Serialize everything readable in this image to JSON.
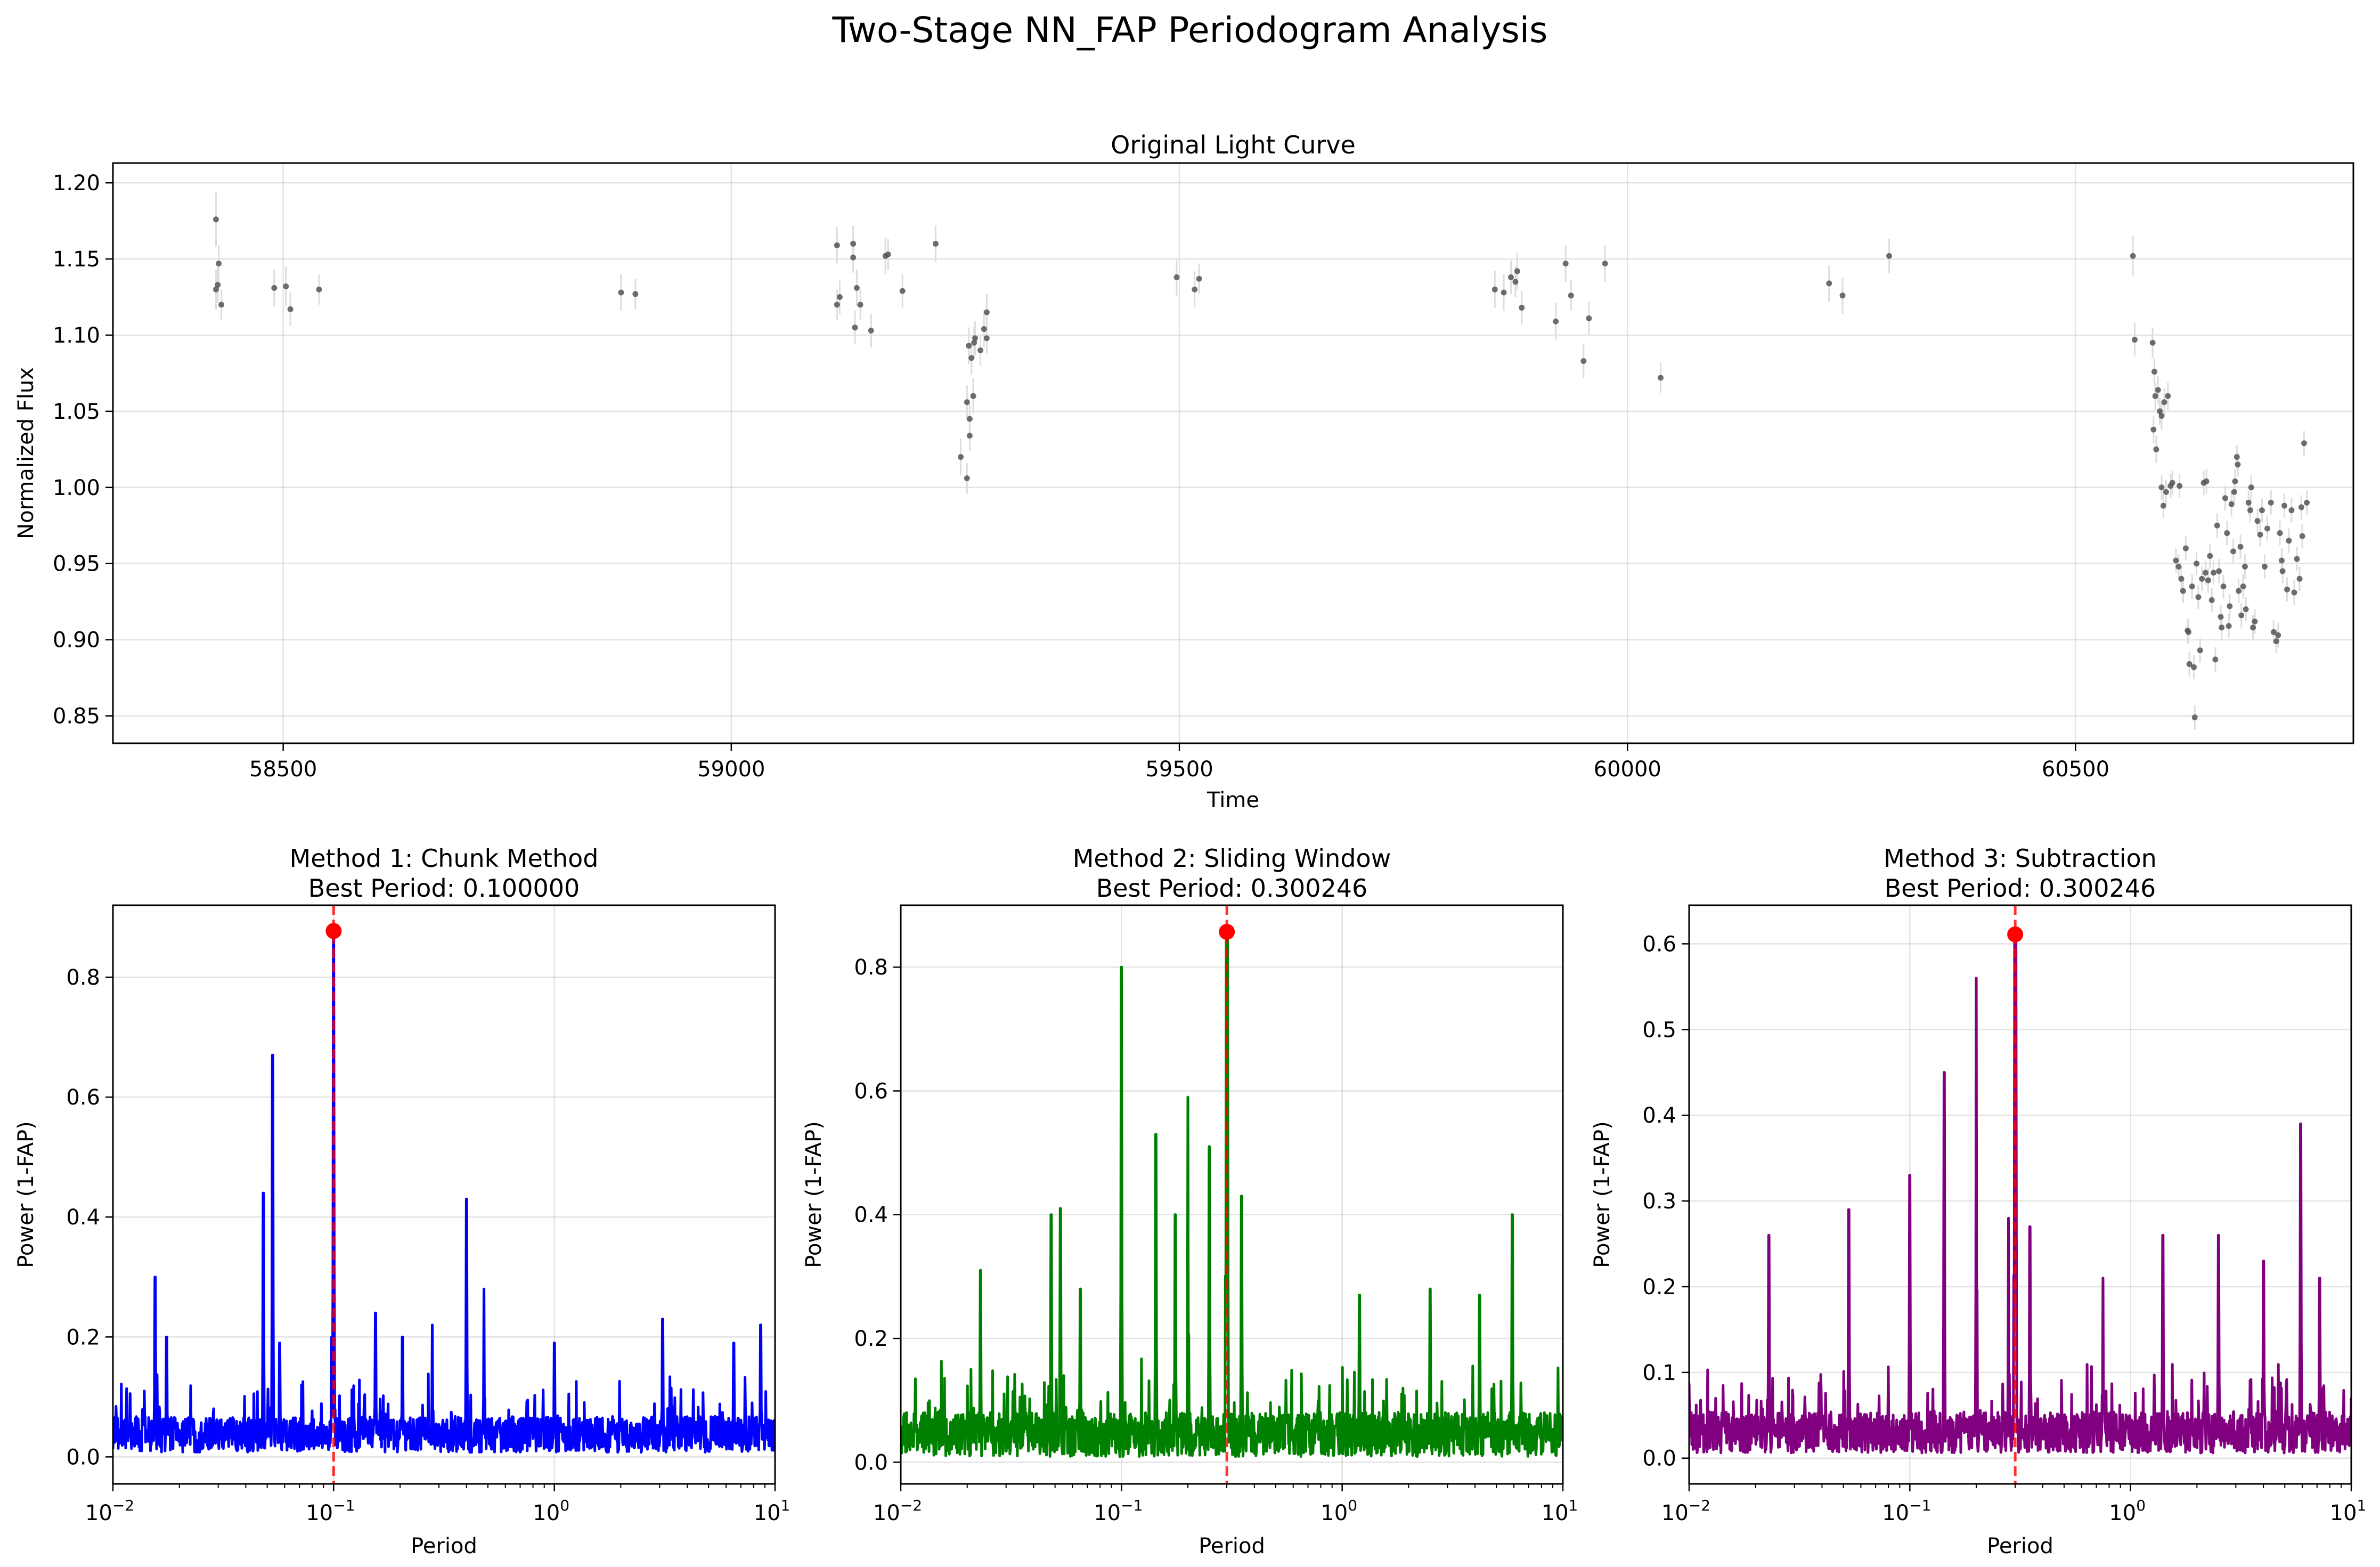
{
  "figure": {
    "title": "Two-Stage NN_FAP Periodogram Analysis"
  },
  "chart_data": [
    {
      "type": "scatter",
      "title": "Original Light Curve",
      "xlabel": "Time",
      "ylabel": "Normalized Flux",
      "xlim": [
        58310,
        60810
      ],
      "ylim": [
        0.832,
        1.213
      ],
      "xticks": [
        58500,
        59000,
        59500,
        60000,
        60500
      ],
      "yticks": [
        0.85,
        0.9,
        0.95,
        1.0,
        1.05,
        1.1,
        1.15,
        1.2
      ],
      "ytick_labels": [
        "0.85",
        "0.90",
        "0.95",
        "1.00",
        "1.05",
        "1.10",
        "1.15",
        "1.20"
      ],
      "grid": true,
      "marker_color": "#555555",
      "errorbar_color": "#dddddd",
      "points": [
        [
          58425,
          1.176,
          0.018
        ],
        [
          58425,
          1.13,
          0.013
        ],
        [
          58427,
          1.133,
          0.012
        ],
        [
          58428,
          1.147,
          0.012
        ],
        [
          58431,
          1.12,
          0.01
        ],
        [
          58490,
          1.131,
          0.012
        ],
        [
          58503,
          1.132,
          0.013
        ],
        [
          58508,
          1.117,
          0.011
        ],
        [
          58540,
          1.13,
          0.01
        ],
        [
          58877,
          1.128,
          0.012
        ],
        [
          58893,
          1.127,
          0.01
        ],
        [
          59118,
          1.159,
          0.012
        ],
        [
          59118,
          1.12,
          0.01
        ],
        [
          59121,
          1.125,
          0.011
        ],
        [
          59136,
          1.16,
          0.012
        ],
        [
          59136,
          1.151,
          0.01
        ],
        [
          59138,
          1.105,
          0.011
        ],
        [
          59140,
          1.131,
          0.012
        ],
        [
          59144,
          1.12,
          0.01
        ],
        [
          59156,
          1.103,
          0.011
        ],
        [
          59172,
          1.152,
          0.012
        ],
        [
          59175,
          1.153,
          0.01
        ],
        [
          59191,
          1.129,
          0.011
        ],
        [
          59228,
          1.16,
          0.012
        ],
        [
          59256,
          1.02,
          0.012
        ],
        [
          59263,
          1.006,
          0.01
        ],
        [
          59263,
          1.056,
          0.011
        ],
        [
          59265,
          1.093,
          0.012
        ],
        [
          59266,
          1.045,
          0.01
        ],
        [
          59266,
          1.034,
          0.01
        ],
        [
          59268,
          1.085,
          0.011
        ],
        [
          59270,
          1.06,
          0.012
        ],
        [
          59271,
          1.095,
          0.01
        ],
        [
          59272,
          1.098,
          0.011
        ],
        [
          59278,
          1.09,
          0.01
        ],
        [
          59282,
          1.104,
          0.012
        ],
        [
          59285,
          1.115,
          0.012
        ],
        [
          59285,
          1.098,
          0.01
        ],
        [
          59497,
          1.138,
          0.012
        ],
        [
          59517,
          1.13,
          0.012
        ],
        [
          59522,
          1.137,
          0.01
        ],
        [
          59852,
          1.13,
          0.012
        ],
        [
          59862,
          1.128,
          0.012
        ],
        [
          59870,
          1.138,
          0.011
        ],
        [
          59875,
          1.135,
          0.01
        ],
        [
          59877,
          1.142,
          0.012
        ],
        [
          59882,
          1.118,
          0.011
        ],
        [
          59920,
          1.109,
          0.012
        ],
        [
          59931,
          1.147,
          0.012
        ],
        [
          59937,
          1.126,
          0.01
        ],
        [
          59951,
          1.083,
          0.011
        ],
        [
          59957,
          1.111,
          0.011
        ],
        [
          59975,
          1.147,
          0.012
        ],
        [
          60037,
          1.072,
          0.01
        ],
        [
          60225,
          1.134,
          0.012
        ],
        [
          60240,
          1.126,
          0.012
        ],
        [
          60292,
          1.152,
          0.011
        ],
        [
          60564,
          1.152,
          0.013
        ],
        [
          60566,
          1.097,
          0.011
        ],
        [
          60586,
          1.095,
          0.01
        ],
        [
          60588,
          1.076,
          0.009
        ],
        [
          60589,
          1.06,
          0.009
        ],
        [
          60587,
          1.038,
          0.009
        ],
        [
          60590,
          1.025,
          0.009
        ],
        [
          60592,
          1.064,
          0.009
        ],
        [
          60594,
          1.05,
          0.009
        ],
        [
          60596,
          1.047,
          0.009
        ],
        [
          60599,
          1.056,
          0.009
        ],
        [
          60603,
          1.06,
          0.009
        ],
        [
          60596,
          1.0,
          0.008
        ],
        [
          60598,
          0.988,
          0.008
        ],
        [
          60601,
          0.997,
          0.008
        ],
        [
          60606,
          1.001,
          0.008
        ],
        [
          60608,
          1.003,
          0.008
        ],
        [
          60612,
          0.952,
          0.008
        ],
        [
          60615,
          0.948,
          0.008
        ],
        [
          60616,
          1.001,
          0.008
        ],
        [
          60618,
          0.94,
          0.008
        ],
        [
          60620,
          0.932,
          0.008
        ],
        [
          60623,
          0.96,
          0.008
        ],
        [
          60625,
          0.906,
          0.008
        ],
        [
          60626,
          0.905,
          0.008
        ],
        [
          60627,
          0.884,
          0.008
        ],
        [
          60630,
          0.935,
          0.008
        ],
        [
          60632,
          0.882,
          0.008
        ],
        [
          60633,
          0.849,
          0.008
        ],
        [
          60635,
          0.95,
          0.008
        ],
        [
          60637,
          0.928,
          0.008
        ],
        [
          60639,
          0.893,
          0.008
        ],
        [
          60641,
          0.94,
          0.008
        ],
        [
          60643,
          1.003,
          0.008
        ],
        [
          60645,
          0.944,
          0.008
        ],
        [
          60646,
          1.004,
          0.008
        ],
        [
          60648,
          0.939,
          0.008
        ],
        [
          60650,
          0.955,
          0.008
        ],
        [
          60652,
          0.926,
          0.008
        ],
        [
          60654,
          0.944,
          0.008
        ],
        [
          60656,
          0.887,
          0.008
        ],
        [
          60658,
          0.975,
          0.008
        ],
        [
          60660,
          0.945,
          0.008
        ],
        [
          60662,
          0.915,
          0.008
        ],
        [
          60663,
          0.908,
          0.008
        ],
        [
          60665,
          0.935,
          0.008
        ],
        [
          60667,
          0.993,
          0.008
        ],
        [
          60669,
          0.97,
          0.008
        ],
        [
          60671,
          0.909,
          0.008
        ],
        [
          60672,
          0.922,
          0.008
        ],
        [
          60674,
          0.989,
          0.008
        ],
        [
          60676,
          0.958,
          0.008
        ],
        [
          60677,
          0.997,
          0.008
        ],
        [
          60678,
          1.004,
          0.008
        ],
        [
          60680,
          1.02,
          0.008
        ],
        [
          60681,
          1.015,
          0.008
        ],
        [
          60682,
          0.932,
          0.008
        ],
        [
          60684,
          0.961,
          0.008
        ],
        [
          60685,
          0.916,
          0.008
        ],
        [
          60687,
          0.935,
          0.008
        ],
        [
          60689,
          0.948,
          0.008
        ],
        [
          60690,
          0.92,
          0.008
        ],
        [
          60693,
          0.99,
          0.008
        ],
        [
          60695,
          0.985,
          0.008
        ],
        [
          60696,
          1.0,
          0.008
        ],
        [
          60698,
          0.908,
          0.008
        ],
        [
          60700,
          0.912,
          0.008
        ],
        [
          60703,
          0.978,
          0.008
        ],
        [
          60706,
          0.969,
          0.008
        ],
        [
          60708,
          0.985,
          0.008
        ],
        [
          60711,
          0.948,
          0.008
        ],
        [
          60714,
          0.973,
          0.008
        ],
        [
          60718,
          0.99,
          0.008
        ],
        [
          60721,
          0.905,
          0.008
        ],
        [
          60724,
          0.899,
          0.008
        ],
        [
          60726,
          0.903,
          0.008
        ],
        [
          60728,
          0.97,
          0.008
        ],
        [
          60730,
          0.952,
          0.008
        ],
        [
          60731,
          0.945,
          0.008
        ],
        [
          60733,
          0.988,
          0.008
        ],
        [
          60736,
          0.933,
          0.008
        ],
        [
          60738,
          0.965,
          0.008
        ],
        [
          60741,
          0.985,
          0.008
        ],
        [
          60744,
          0.931,
          0.008
        ],
        [
          60747,
          0.953,
          0.008
        ],
        [
          60750,
          0.94,
          0.008
        ],
        [
          60752,
          0.987,
          0.008
        ],
        [
          60753,
          0.968,
          0.008
        ],
        [
          60755,
          1.029,
          0.008
        ],
        [
          60758,
          0.99,
          0.008
        ]
      ]
    },
    {
      "type": "line",
      "title": "Method 1: Chunk Method",
      "subtitle": "Best Period: 0.100000",
      "xlabel": "Period",
      "ylabel": "Power (1-FAP)",
      "xscale": "log",
      "xlim": [
        0.01,
        10
      ],
      "ylim": [
        -0.045,
        0.92
      ],
      "yticks": [
        0.0,
        0.2,
        0.4,
        0.6,
        0.8
      ],
      "ytick_labels": [
        "0.0",
        "0.2",
        "0.4",
        "0.6",
        "0.8"
      ],
      "line_color": "#0000ff",
      "best_period": 0.1,
      "best_power": 0.877,
      "noise_level": 0.05,
      "peaks": [
        [
          0.0155,
          0.3
        ],
        [
          0.0175,
          0.2
        ],
        [
          0.048,
          0.44
        ],
        [
          0.053,
          0.67
        ],
        [
          0.057,
          0.19
        ],
        [
          0.098,
          0.2
        ],
        [
          0.1,
          0.877
        ],
        [
          0.155,
          0.24
        ],
        [
          0.205,
          0.2
        ],
        [
          0.28,
          0.22
        ],
        [
          0.4,
          0.43
        ],
        [
          0.48,
          0.28
        ],
        [
          1.0,
          0.19
        ],
        [
          3.1,
          0.23
        ],
        [
          6.5,
          0.19
        ],
        [
          8.6,
          0.22
        ]
      ]
    },
    {
      "type": "line",
      "title": "Method 2: Sliding Window",
      "subtitle": "Best Period: 0.300246",
      "xlabel": "Period",
      "ylabel": "Power (1-FAP)",
      "xscale": "log",
      "xlim": [
        0.01,
        10
      ],
      "ylim": [
        -0.035,
        0.9
      ],
      "yticks": [
        0.0,
        0.2,
        0.4,
        0.6,
        0.8
      ],
      "ytick_labels": [
        "0.0",
        "0.2",
        "0.4",
        "0.6",
        "0.8"
      ],
      "line_color": "#008000",
      "best_period": 0.300246,
      "best_power": 0.857,
      "noise_level": 0.06,
      "peaks": [
        [
          0.023,
          0.31
        ],
        [
          0.048,
          0.4
        ],
        [
          0.053,
          0.41
        ],
        [
          0.065,
          0.28
        ],
        [
          0.1,
          0.8
        ],
        [
          0.143,
          0.53
        ],
        [
          0.175,
          0.4
        ],
        [
          0.2,
          0.59
        ],
        [
          0.25,
          0.51
        ],
        [
          0.2985,
          0.86
        ],
        [
          0.302,
          0.86
        ],
        [
          0.35,
          0.43
        ],
        [
          1.2,
          0.27
        ],
        [
          2.5,
          0.28
        ],
        [
          4.2,
          0.27
        ],
        [
          5.9,
          0.4
        ]
      ]
    },
    {
      "type": "line",
      "title": "Method 3: Subtraction",
      "subtitle": "Best Period: 0.300246",
      "xlabel": "Period",
      "ylabel": "Power (1-FAP)",
      "xscale": "log",
      "xlim": [
        0.01,
        10
      ],
      "ylim": [
        -0.03,
        0.645
      ],
      "yticks": [
        0.0,
        0.1,
        0.2,
        0.3,
        0.4,
        0.5,
        0.6
      ],
      "ytick_labels": [
        "0.0",
        "0.1",
        "0.2",
        "0.3",
        "0.4",
        "0.5",
        "0.6"
      ],
      "line_color": "#800080",
      "best_period": 0.300246,
      "best_power": 0.611,
      "noise_level": 0.04,
      "peaks": [
        [
          0.023,
          0.26
        ],
        [
          0.053,
          0.29
        ],
        [
          0.1,
          0.33
        ],
        [
          0.143,
          0.45
        ],
        [
          0.2,
          0.56
        ],
        [
          0.2985,
          0.61
        ],
        [
          0.302,
          0.61
        ],
        [
          0.28,
          0.28
        ],
        [
          0.35,
          0.27
        ],
        [
          0.75,
          0.21
        ],
        [
          1.4,
          0.26
        ],
        [
          2.5,
          0.26
        ],
        [
          4.0,
          0.23
        ],
        [
          5.9,
          0.39
        ],
        [
          7.2,
          0.21
        ]
      ]
    }
  ]
}
